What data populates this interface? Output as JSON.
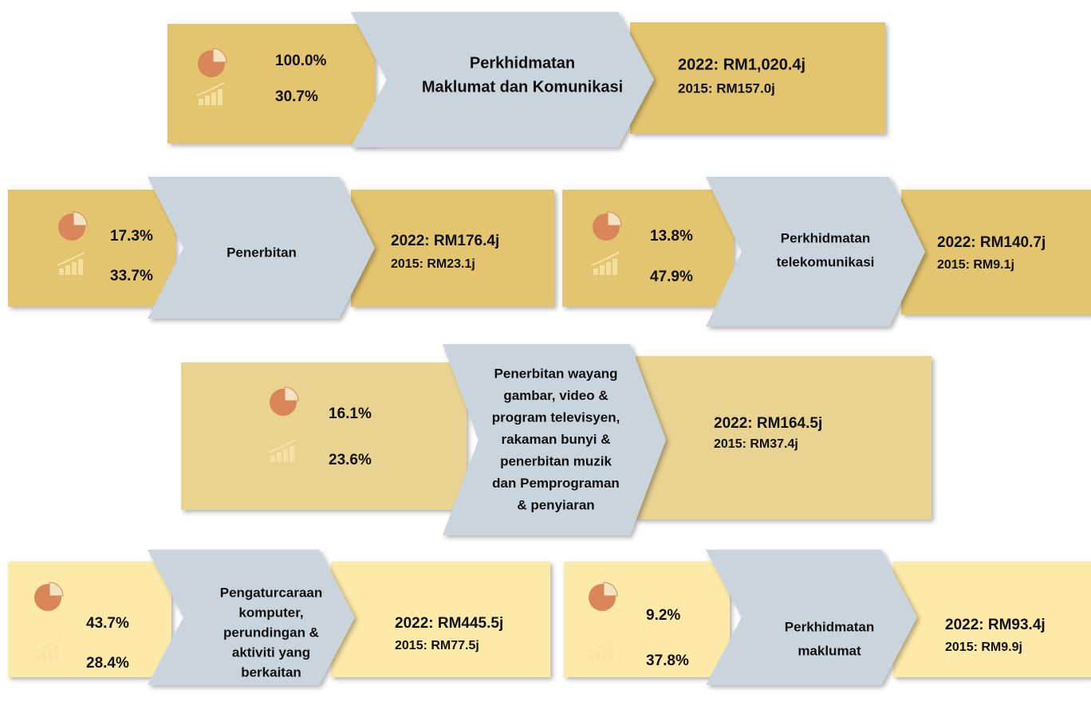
{
  "blocks": [
    {
      "share": "100.0%",
      "growth": "30.7%",
      "label_lines": [
        "Perkhidmatan",
        "Maklumat dan Komunikasi"
      ],
      "value_2022": "2022: RM1,020.4j",
      "value_2015": "2015: RM157.0j"
    },
    {
      "share": "17.3%",
      "growth": "33.7%",
      "label_lines": [
        "Penerbitan"
      ],
      "value_2022": "2022: RM176.4j",
      "value_2015": "2015: RM23.1j"
    },
    {
      "share": "13.8%",
      "growth": "47.9%",
      "label_lines": [
        "Perkhidmatan",
        "telekomunikasi"
      ],
      "value_2022": "2022: RM140.7j",
      "value_2015": "2015: RM9.1j"
    },
    {
      "share": "16.1%",
      "growth": "23.6%",
      "label_lines": [
        "Penerbitan wayang",
        "gambar,  video &",
        "program televisyen,",
        "rakaman bunyi &",
        "penerbitan muzik",
        "dan Pemprograman",
        "& penyiaran"
      ],
      "value_2022": "2022: RM164.5j",
      "value_2015": "2015: RM37.4j"
    },
    {
      "share": "43.7%",
      "growth": "28.4%",
      "label_lines": [
        "Pengaturcaraan",
        "komputer,",
        "perundingan  &",
        "aktiviti yang",
        "berkaitan"
      ],
      "value_2022": "2022: RM445.5j",
      "value_2015": "2015: RM77.5j"
    },
    {
      "share": "9.2%",
      "growth": "37.8%",
      "label_lines": [
        "Perkhidmatan",
        "maklumat"
      ],
      "value_2022": "2022: RM93.4j",
      "value_2015": "2015: RM9.9j"
    }
  ]
}
